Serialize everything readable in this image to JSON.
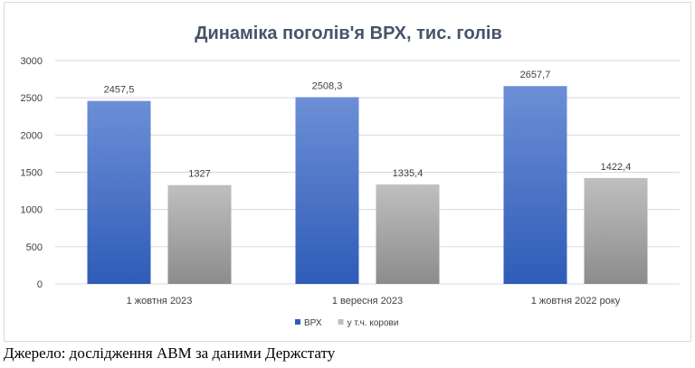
{
  "caption": "Джерело: дослідження АВМ за даними Держстату",
  "colors": {
    "title": "#44546a",
    "grid": "#d9d9d9",
    "text": "#404040",
    "series_1_top": "#6c8fd6",
    "series_1_bottom": "#2f5cb8",
    "series_2_top": "#bfbfbf",
    "series_2_bottom": "#8c8c8c"
  },
  "chart_data": {
    "type": "bar",
    "title": "Динаміка поголів'я ВРХ, тис. голів",
    "xlabel": "",
    "ylabel": "",
    "categories": [
      "1 жовтня 2023",
      "1 вересня 2023",
      "1 жовтня 2022 року"
    ],
    "series": [
      {
        "name": "ВРХ",
        "values": [
          2457.5,
          2508.3,
          2657.7
        ],
        "labels": [
          "2457,5",
          "2508,3",
          "2657,7"
        ]
      },
      {
        "name": "у т.ч. корови",
        "values": [
          1327,
          1335.4,
          1422.4
        ],
        "labels": [
          "1327",
          "1335,4",
          "1422,4"
        ]
      }
    ],
    "ylim": [
      0,
      3000
    ],
    "yticks": [
      0,
      500,
      1000,
      1500,
      2000,
      2500,
      3000
    ],
    "grid": true,
    "legend": "bottom"
  }
}
